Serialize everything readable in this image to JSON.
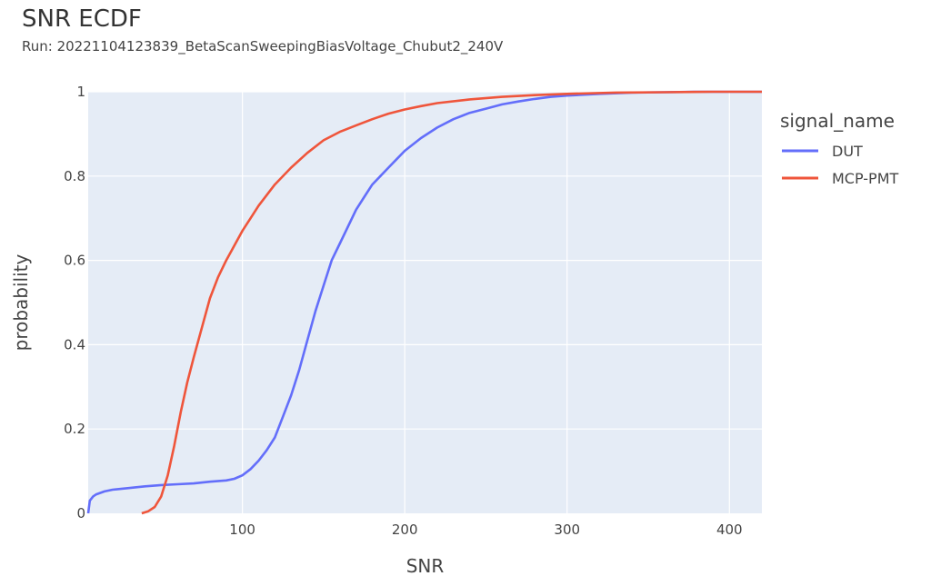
{
  "chart_data": {
    "type": "line",
    "title": "SNR ECDF",
    "subtitle": "Run: 20221104123839_BetaScanSweepingBiasVoltage_Chubut2_240V",
    "xlabel": "SNR",
    "ylabel": "probability",
    "xlim": [
      5,
      420
    ],
    "ylim": [
      0,
      1
    ],
    "x_ticks": [
      "100",
      "200",
      "300",
      "400"
    ],
    "y_ticks": [
      "0",
      "0.2",
      "0.4",
      "0.6",
      "0.8",
      "1"
    ],
    "grid": true,
    "legend_title": "signal_name",
    "legend_position": "right",
    "series": [
      {
        "name": "DUT",
        "color": "#636efa",
        "x": [
          5,
          6,
          8,
          10,
          15,
          20,
          30,
          40,
          50,
          60,
          70,
          80,
          90,
          95,
          100,
          105,
          110,
          115,
          120,
          125,
          130,
          135,
          140,
          145,
          150,
          155,
          160,
          165,
          170,
          175,
          180,
          185,
          190,
          195,
          200,
          210,
          220,
          230,
          240,
          250,
          260,
          270,
          280,
          290,
          300,
          320,
          340,
          360,
          380,
          400,
          420
        ],
        "y": [
          0.0,
          0.03,
          0.04,
          0.045,
          0.052,
          0.056,
          0.06,
          0.064,
          0.067,
          0.069,
          0.071,
          0.075,
          0.078,
          0.082,
          0.09,
          0.105,
          0.125,
          0.15,
          0.18,
          0.23,
          0.28,
          0.34,
          0.41,
          0.48,
          0.54,
          0.6,
          0.64,
          0.68,
          0.72,
          0.75,
          0.78,
          0.8,
          0.82,
          0.84,
          0.86,
          0.89,
          0.915,
          0.935,
          0.95,
          0.96,
          0.97,
          0.977,
          0.983,
          0.988,
          0.991,
          0.995,
          0.998,
          0.999,
          1.0,
          1.0,
          1.0
        ]
      },
      {
        "name": "MCP-PMT",
        "color": "#ef553b",
        "x": [
          38,
          42,
          46,
          50,
          54,
          58,
          62,
          66,
          70,
          75,
          80,
          85,
          90,
          95,
          100,
          105,
          110,
          115,
          120,
          130,
          140,
          150,
          160,
          170,
          180,
          190,
          200,
          210,
          220,
          240,
          260,
          280,
          300,
          330,
          360,
          390,
          420
        ],
        "y": [
          0.0,
          0.005,
          0.015,
          0.04,
          0.09,
          0.16,
          0.24,
          0.31,
          0.37,
          0.44,
          0.51,
          0.56,
          0.6,
          0.635,
          0.67,
          0.7,
          0.73,
          0.755,
          0.78,
          0.82,
          0.855,
          0.885,
          0.905,
          0.92,
          0.935,
          0.948,
          0.958,
          0.966,
          0.973,
          0.982,
          0.988,
          0.992,
          0.995,
          0.998,
          0.999,
          1.0,
          1.0
        ]
      }
    ]
  }
}
